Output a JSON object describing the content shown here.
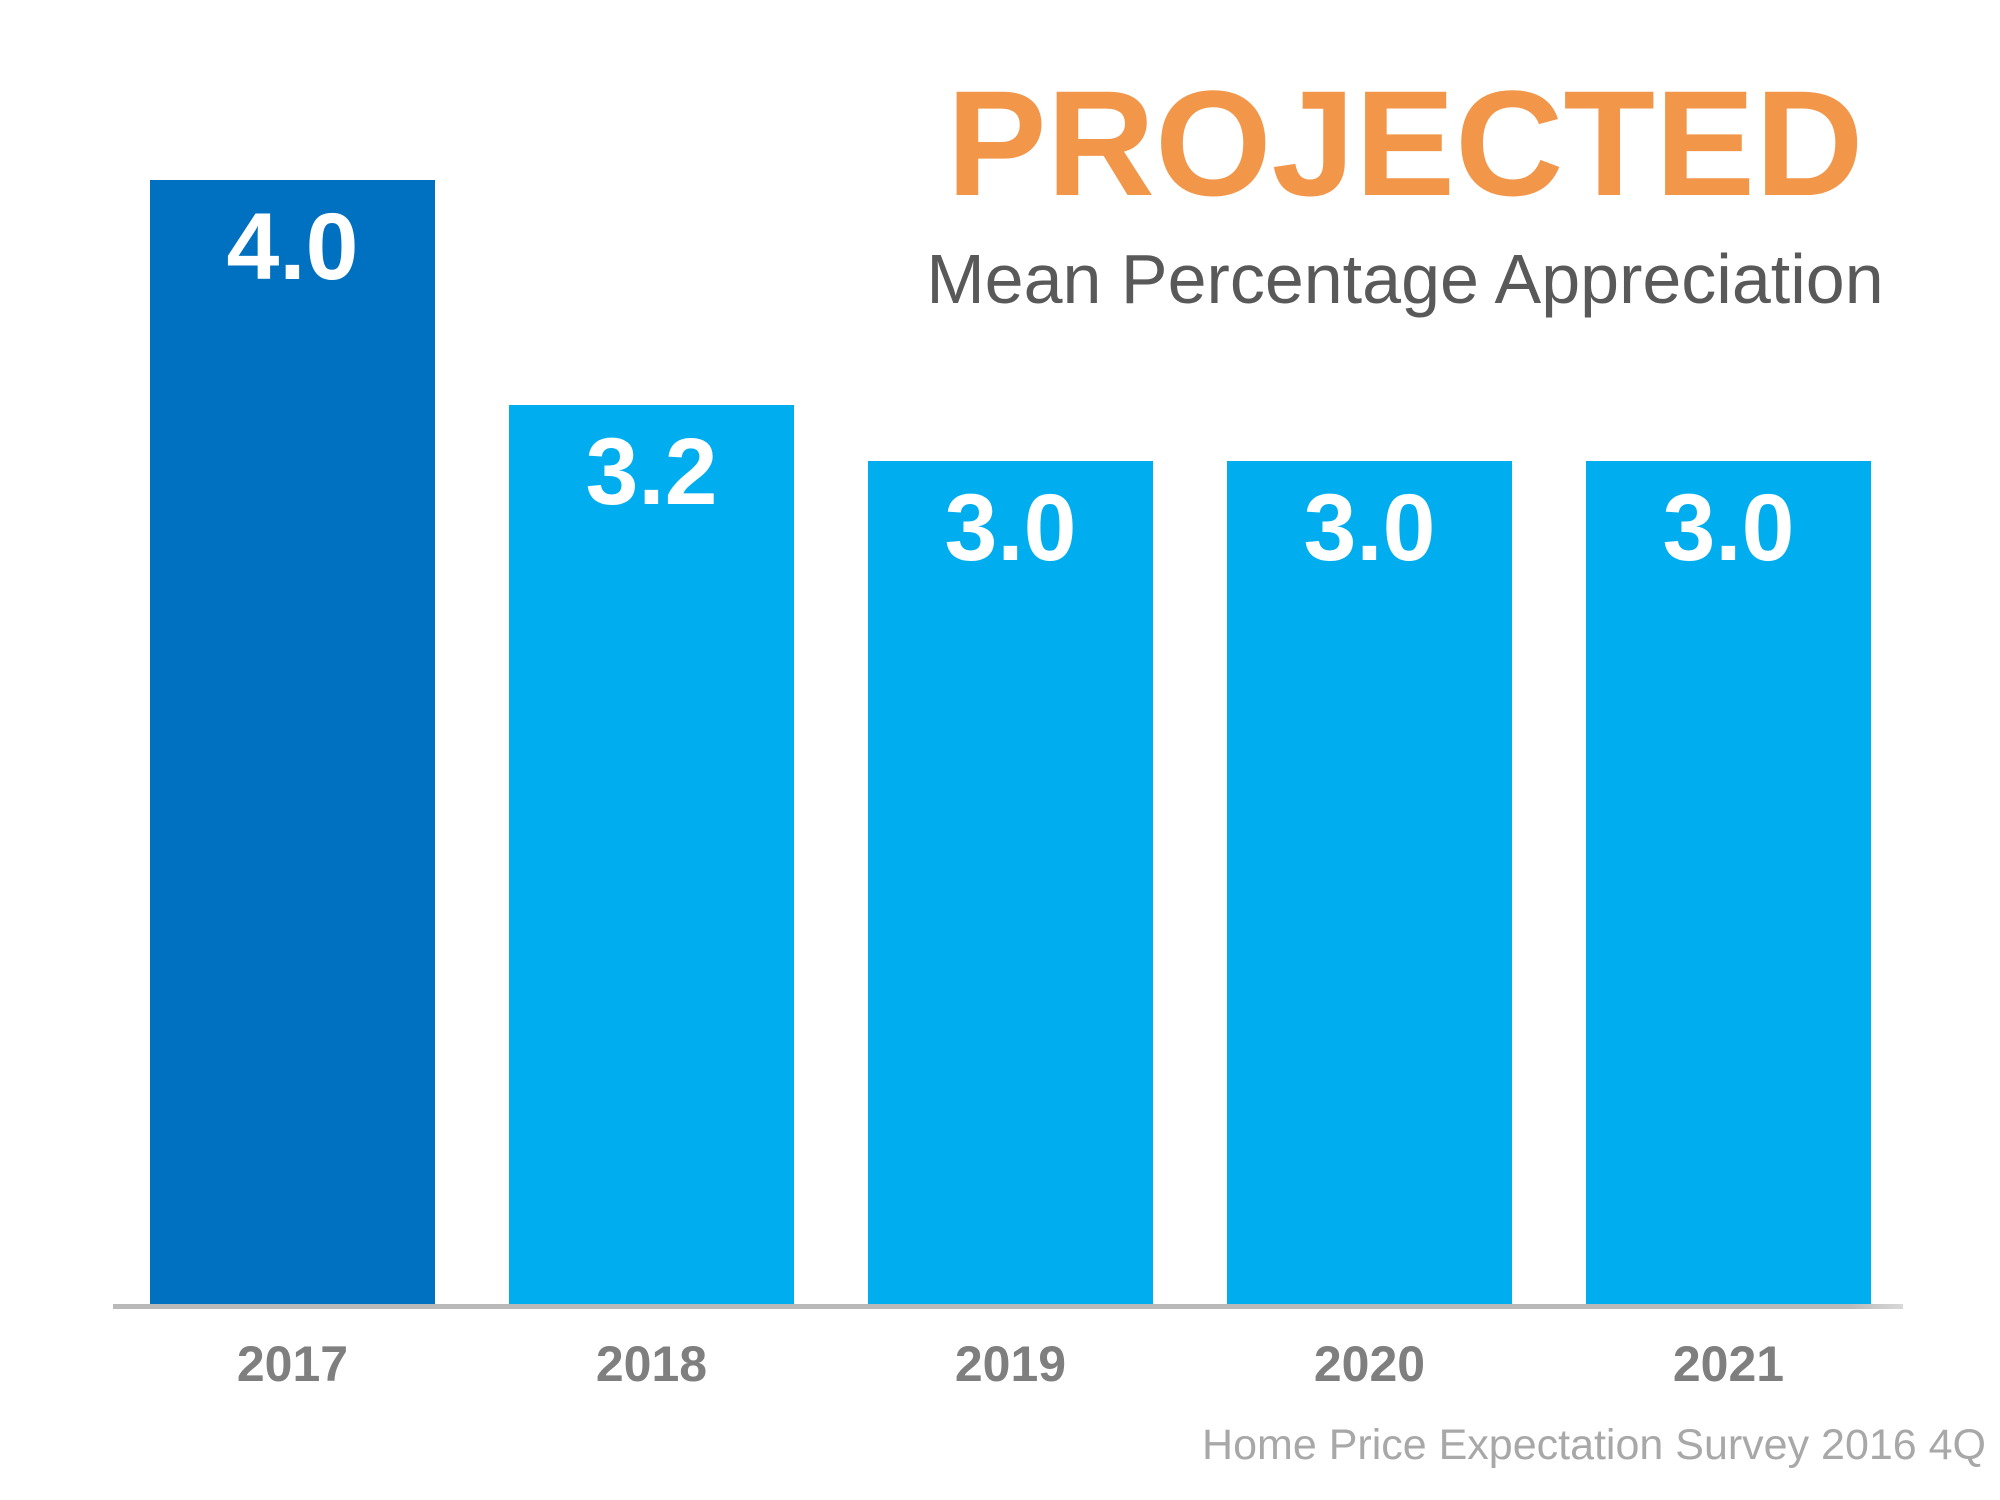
{
  "chart_data": {
    "type": "bar",
    "title": "PROJECTED",
    "subtitle": "Mean Percentage Appreciation",
    "source": "Home Price Expectation Survey 2016 4Q",
    "categories": [
      "2017",
      "2018",
      "2019",
      "2020",
      "2021"
    ],
    "values": [
      4.0,
      3.2,
      3.0,
      3.0,
      3.0
    ],
    "value_labels": [
      "4.0",
      "3.2",
      "3.0",
      "3.0",
      "3.0"
    ],
    "ylabel": "",
    "xlabel": "",
    "ylim": [
      0,
      4.0
    ],
    "grid": false,
    "legend": false,
    "layout_hint": "value labels inside top of bars; years below baseline; first bar highlighted",
    "colors": {
      "bar_highlight": "#0070C0",
      "bar_default": "#00AEEF",
      "title": "#F2964A",
      "subtitle": "#595959",
      "year_label": "#7F7F7F",
      "value_label": "#FFFFFF",
      "source": "#A8A8A8",
      "axis_line": "#B9B9B9"
    }
  }
}
